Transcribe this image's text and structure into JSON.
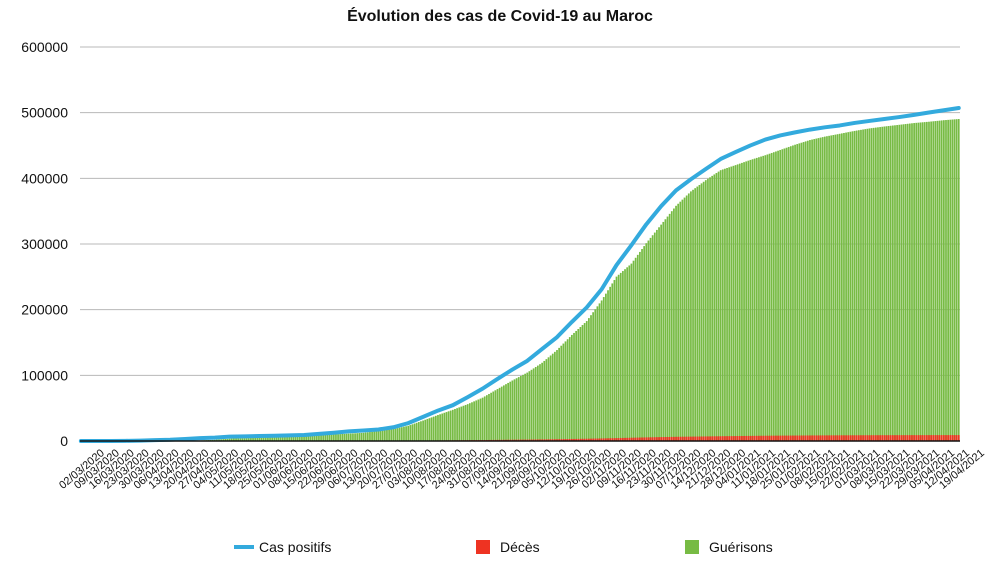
{
  "chart_data": {
    "type": "bar",
    "title": "Évolution des cas de Covid-19 au Maroc",
    "xlabel": "",
    "ylabel": "",
    "ylim": [
      0,
      600000
    ],
    "yticks": [
      "0",
      "100000",
      "200000",
      "300000",
      "400000",
      "500000",
      "600000"
    ],
    "grid": true,
    "legend_position": "bottom",
    "x_tick_labels": [
      "02/03/2020",
      "09/03/2020",
      "16/03/2020",
      "23/03/2020",
      "30/03/2020",
      "06/04/2020",
      "13/04/2020",
      "20/04/2020",
      "27/04/2020",
      "04/05/2020",
      "11/05/2020",
      "18/05/2020",
      "25/05/2020",
      "01/06/2020",
      "08/06/2020",
      "15/06/2020",
      "22/06/2020",
      "29/06/2020",
      "06/07/2020",
      "13/07/2020",
      "20/07/2020",
      "27/07/2020",
      "03/08/2020",
      "10/08/2020",
      "17/08/2020",
      "24/08/2020",
      "31/08/2020",
      "07/09/2020",
      "14/09/2020",
      "21/09/2020",
      "28/09/2020",
      "05/10/2020",
      "12/10/2020",
      "19/10/2020",
      "26/10/2020",
      "02/11/2020",
      "09/11/2020",
      "16/11/2020",
      "23/11/2020",
      "30/11/2020",
      "07/12/2020",
      "14/12/2020",
      "21/12/2020",
      "28/12/2020",
      "04/01/2021",
      "11/01/2021",
      "18/01/2021",
      "25/01/2021",
      "01/02/2021",
      "08/02/2021",
      "15/02/2021",
      "22/02/2021",
      "01/03/2021",
      "08/03/2021",
      "15/03/2021",
      "22/03/2021",
      "29/03/2021",
      "05/04/2021",
      "12/04/2021",
      "19/04/2021"
    ],
    "weeks": [
      "02/03/2020",
      "09/03/2020",
      "16/03/2020",
      "23/03/2020",
      "30/03/2020",
      "06/04/2020",
      "13/04/2020",
      "20/04/2020",
      "27/04/2020",
      "04/05/2020",
      "11/05/2020",
      "18/05/2020",
      "25/05/2020",
      "01/06/2020",
      "08/06/2020",
      "15/06/2020",
      "22/06/2020",
      "29/06/2020",
      "06/07/2020",
      "13/07/2020",
      "20/07/2020",
      "27/07/2020",
      "03/08/2020",
      "10/08/2020",
      "17/08/2020",
      "24/08/2020",
      "31/08/2020",
      "07/09/2020",
      "14/09/2020",
      "21/09/2020",
      "28/09/2020",
      "05/10/2020",
      "12/10/2020",
      "19/10/2020",
      "26/10/2020",
      "02/11/2020",
      "09/11/2020",
      "16/11/2020",
      "23/11/2020",
      "30/11/2020",
      "07/12/2020",
      "14/12/2020",
      "21/12/2020",
      "28/12/2020",
      "04/01/2021",
      "11/01/2021",
      "18/01/2021",
      "25/01/2021",
      "01/02/2021",
      "08/02/2021",
      "15/02/2021",
      "22/02/2021",
      "01/03/2021",
      "08/03/2021",
      "15/03/2021",
      "22/03/2021",
      "29/03/2021",
      "05/04/2021",
      "12/04/2021",
      "19/04/2021"
    ],
    "series": [
      {
        "name": "Cas positifs",
        "kind": "line",
        "color": "#33aadd",
        "values": [
          2,
          2,
          28,
          225,
          617,
          1275,
          1888,
          3046,
          4321,
          5219,
          6652,
          7133,
          7577,
          8030,
          8508,
          9074,
          10907,
          12636,
          14607,
          15936,
          17562,
          20887,
          27217,
          36694,
          46313,
          54528,
          66855,
          79767,
          94504,
          108798,
          122039,
          140126,
          158136,
          181368,
          203495,
          231081,
          267950,
          298256,
          329918,
          357722,
          381634,
          398609,
          414226,
          429455,
          439941,
          450089,
          459046,
          465346,
          470001,
          474233,
          477722,
          480516,
          484347,
          487430,
          490329,
          493328,
          496595,
          500251,
          503650,
          507150
        ]
      },
      {
        "name": "Décès",
        "kind": "bar",
        "color": "#ee3322",
        "values": [
          0,
          0,
          1,
          11,
          39,
          81,
          126,
          143,
          170,
          174,
          183,
          190,
          198,
          204,
          209,
          212,
          214,
          228,
          240,
          253,
          261,
          316,
          480,
          642,
          816,
          1011,
          1229,
          1453,
          1714,
          1955,
          2152,
          2419,
          2704,
          3077,
          3445,
          3883,
          4425,
          4985,
          5493,
          5956,
          6366,
          6646,
          6942,
          7248,
          7509,
          7785,
          8021,
          8207,
          8327,
          8458,
          8564,
          8650,
          8727,
          8790,
          8850,
          8885,
          8919,
          8949,
          8971,
          9006
        ]
      },
      {
        "name": "Guérisons",
        "kind": "bar",
        "color": "#77bb44",
        "values": [
          0,
          0,
          1,
          10,
          35,
          96,
          224,
          453,
          829,
          1838,
          3645,
          4280,
          4846,
          6410,
          7618,
          8041,
          8656,
          10011,
          11180,
          12468,
          15224,
          18218,
          23154,
          31172,
          39548,
          47495,
          56123,
          66005,
          79090,
          92165,
          104155,
          119125,
          138521,
          161519,
          182648,
          214024,
          250321,
          270145,
          301243,
          329511,
          358156,
          380115,
          397208,
          412436,
          420126,
          428031,
          435212,
          443182,
          451187,
          458312,
          463510,
          467811,
          472210,
          476013,
          478924,
          481527,
          484205,
          486213,
          488531,
          490311
        ]
      }
    ]
  }
}
